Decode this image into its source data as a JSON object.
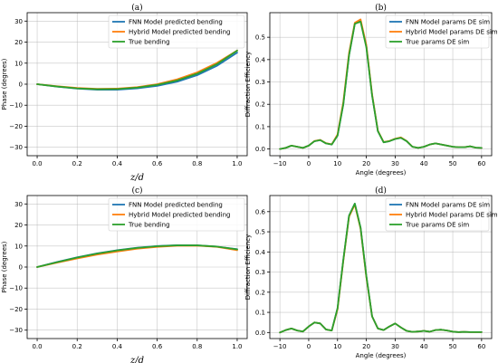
{
  "figure": {
    "panels": [
      "a",
      "b",
      "c",
      "d"
    ]
  },
  "chart_data": [
    {
      "id": "a",
      "panel_label": "(a)",
      "type": "line",
      "xlabel": "z/d",
      "ylabel": "Phase (degrees)",
      "xlim": [
        -0.05,
        1.05
      ],
      "ylim": [
        -34,
        34
      ],
      "xticks": [
        0.0,
        0.2,
        0.4,
        0.6,
        0.8,
        1.0
      ],
      "xtick_labels": [
        "0.0",
        "0.2",
        "0.4",
        "0.6",
        "0.8",
        "1.0"
      ],
      "yticks": [
        -30,
        -20,
        -10,
        0,
        10,
        20,
        30
      ],
      "ytick_labels": [
        "−30",
        "−20",
        "−10",
        "0",
        "10",
        "20",
        "30"
      ],
      "grid": true,
      "legend_position": "top-right",
      "series": [
        {
          "name": "FNN Model predicted bending",
          "color": "#1f77b4",
          "x": [
            0.0,
            0.1,
            0.2,
            0.3,
            0.4,
            0.5,
            0.6,
            0.7,
            0.8,
            0.9,
            1.0
          ],
          "y": [
            0.0,
            -1.2,
            -2.1,
            -2.6,
            -2.6,
            -2.0,
            -0.8,
            1.2,
            4.3,
            8.8,
            15.0
          ]
        },
        {
          "name": "Hybrid Model predicted bending",
          "color": "#ff7f0e",
          "x": [
            0.0,
            0.1,
            0.2,
            0.3,
            0.4,
            0.5,
            0.6,
            0.7,
            0.8,
            0.9,
            1.0
          ],
          "y": [
            0.0,
            -1.0,
            -1.8,
            -2.2,
            -2.1,
            -1.4,
            0.0,
            2.3,
            5.6,
            10.2,
            16.0
          ]
        },
        {
          "name": "True bending",
          "color": "#2ca02c",
          "x": [
            0.0,
            0.1,
            0.2,
            0.3,
            0.4,
            0.5,
            0.6,
            0.7,
            0.8,
            0.9,
            1.0
          ],
          "y": [
            0.0,
            -1.1,
            -2.0,
            -2.4,
            -2.3,
            -1.6,
            -0.3,
            1.8,
            5.0,
            9.6,
            16.0
          ]
        }
      ]
    },
    {
      "id": "b",
      "panel_label": "(b)",
      "type": "line",
      "xlabel": "Angle (degrees)",
      "ylabel": "Diffraction Efficiency",
      "xlim": [
        -13.5,
        63.5
      ],
      "ylim": [
        -0.03,
        0.61
      ],
      "xticks": [
        -10,
        0,
        10,
        20,
        30,
        40,
        50,
        60
      ],
      "xtick_labels": [
        "−10",
        "0",
        "10",
        "20",
        "30",
        "40",
        "50",
        "60"
      ],
      "yticks": [
        0.0,
        0.1,
        0.2,
        0.3,
        0.4,
        0.5
      ],
      "ytick_labels": [
        "0.0",
        "0.1",
        "0.2",
        "0.3",
        "0.4",
        "0.5"
      ],
      "grid": true,
      "legend_position": "top-right",
      "series": [
        {
          "name": "FNN Model params DE sim",
          "color": "#1f77b4",
          "x": [
            -10,
            -8,
            -6,
            -4,
            -2,
            0,
            2,
            4,
            6,
            8,
            10,
            12,
            14,
            16,
            18,
            20,
            22,
            24,
            26,
            28,
            30,
            32,
            34,
            36,
            38,
            40,
            42,
            44,
            46,
            48,
            50,
            52,
            54,
            56,
            58,
            60
          ],
          "y": [
            0.0,
            0.005,
            0.015,
            0.01,
            0.005,
            0.015,
            0.035,
            0.04,
            0.025,
            0.02,
            0.06,
            0.2,
            0.42,
            0.56,
            0.575,
            0.46,
            0.24,
            0.08,
            0.03,
            0.035,
            0.045,
            0.05,
            0.035,
            0.01,
            0.005,
            0.01,
            0.02,
            0.025,
            0.02,
            0.015,
            0.01,
            0.008,
            0.008,
            0.012,
            0.006,
            0.005
          ]
        },
        {
          "name": "Hybrid Model params DE sim",
          "color": "#ff7f0e",
          "x": [
            -10,
            -8,
            -6,
            -4,
            -2,
            0,
            2,
            4,
            6,
            8,
            10,
            12,
            14,
            16,
            18,
            20,
            22,
            24,
            26,
            28,
            30,
            32,
            34,
            36,
            38,
            40,
            42,
            44,
            46,
            48,
            50,
            52,
            54,
            56,
            58,
            60
          ],
          "y": [
            0.0,
            0.005,
            0.015,
            0.01,
            0.005,
            0.015,
            0.036,
            0.041,
            0.026,
            0.021,
            0.065,
            0.21,
            0.43,
            0.565,
            0.58,
            0.465,
            0.245,
            0.082,
            0.031,
            0.036,
            0.046,
            0.052,
            0.036,
            0.01,
            0.005,
            0.01,
            0.02,
            0.025,
            0.02,
            0.015,
            0.01,
            0.008,
            0.008,
            0.012,
            0.006,
            0.005
          ]
        },
        {
          "name": "True params DE sim",
          "color": "#2ca02c",
          "x": [
            -10,
            -8,
            -6,
            -4,
            -2,
            0,
            2,
            4,
            6,
            8,
            10,
            12,
            14,
            16,
            18,
            20,
            22,
            24,
            26,
            28,
            30,
            32,
            34,
            36,
            38,
            40,
            42,
            44,
            46,
            48,
            50,
            52,
            54,
            56,
            58,
            60
          ],
          "y": [
            0.0,
            0.005,
            0.015,
            0.01,
            0.005,
            0.015,
            0.035,
            0.04,
            0.025,
            0.02,
            0.06,
            0.2,
            0.42,
            0.56,
            0.57,
            0.455,
            0.24,
            0.08,
            0.03,
            0.035,
            0.045,
            0.05,
            0.035,
            0.01,
            0.005,
            0.01,
            0.02,
            0.025,
            0.02,
            0.015,
            0.01,
            0.008,
            0.008,
            0.012,
            0.006,
            0.005
          ]
        }
      ]
    },
    {
      "id": "c",
      "panel_label": "(c)",
      "type": "line",
      "xlabel": "z/d",
      "ylabel": "Phase (degrees)",
      "xlim": [
        -0.05,
        1.05
      ],
      "ylim": [
        -34,
        34
      ],
      "xticks": [
        0.0,
        0.2,
        0.4,
        0.6,
        0.8,
        1.0
      ],
      "xtick_labels": [
        "0.0",
        "0.2",
        "0.4",
        "0.6",
        "0.8",
        "1.0"
      ],
      "yticks": [
        -30,
        -20,
        -10,
        0,
        10,
        20,
        30
      ],
      "ytick_labels": [
        "−30",
        "−20",
        "−10",
        "0",
        "10",
        "20",
        "30"
      ],
      "grid": true,
      "legend_position": "top-right",
      "series": [
        {
          "name": "FNN Model predicted bending",
          "color": "#1f77b4",
          "x": [
            0.0,
            0.1,
            0.2,
            0.3,
            0.4,
            0.5,
            0.6,
            0.7,
            0.8,
            0.9,
            1.0
          ],
          "y": [
            0.0,
            2.4,
            4.6,
            6.5,
            8.0,
            9.2,
            10.0,
            10.4,
            10.3,
            9.7,
            8.5
          ]
        },
        {
          "name": "Hybrid Model predicted bending",
          "color": "#ff7f0e",
          "x": [
            0.0,
            0.1,
            0.2,
            0.3,
            0.4,
            0.5,
            0.6,
            0.7,
            0.8,
            0.9,
            1.0
          ],
          "y": [
            0.0,
            2.1,
            4.1,
            5.9,
            7.4,
            8.7,
            9.6,
            10.1,
            10.2,
            9.6,
            8.0
          ]
        },
        {
          "name": "True bending",
          "color": "#2ca02c",
          "x": [
            0.0,
            0.1,
            0.2,
            0.3,
            0.4,
            0.5,
            0.6,
            0.7,
            0.8,
            0.9,
            1.0
          ],
          "y": [
            0.0,
            2.3,
            4.5,
            6.4,
            7.9,
            9.1,
            9.9,
            10.3,
            10.3,
            9.7,
            8.4
          ]
        }
      ]
    },
    {
      "id": "d",
      "panel_label": "(d)",
      "type": "line",
      "xlabel": "Angle (degrees)",
      "ylabel": "Diffraction Efficiency",
      "xlim": [
        -13.5,
        63.5
      ],
      "ylim": [
        -0.03,
        0.68
      ],
      "xticks": [
        -10,
        0,
        10,
        20,
        30,
        40,
        50,
        60
      ],
      "xtick_labels": [
        "−10",
        "0",
        "10",
        "20",
        "30",
        "40",
        "50",
        "60"
      ],
      "yticks": [
        0.0,
        0.1,
        0.2,
        0.3,
        0.4,
        0.5,
        0.6
      ],
      "ytick_labels": [
        "0.0",
        "0.1",
        "0.2",
        "0.3",
        "0.4",
        "0.5",
        "0.6"
      ],
      "grid": true,
      "legend_position": "top-right",
      "series": [
        {
          "name": "FNN Model params DE sim",
          "color": "#1f77b4",
          "x": [
            -10,
            -8,
            -6,
            -4,
            -2,
            0,
            2,
            4,
            6,
            8,
            10,
            12,
            14,
            16,
            18,
            20,
            22,
            24,
            26,
            28,
            30,
            32,
            34,
            36,
            38,
            40,
            42,
            44,
            46,
            48,
            50,
            52,
            54,
            56,
            58,
            60
          ],
          "y": [
            0.0,
            0.012,
            0.02,
            0.01,
            0.005,
            0.03,
            0.05,
            0.045,
            0.015,
            0.01,
            0.12,
            0.36,
            0.58,
            0.64,
            0.52,
            0.28,
            0.08,
            0.02,
            0.012,
            0.03,
            0.045,
            0.025,
            0.008,
            0.003,
            0.005,
            0.008,
            0.004,
            0.012,
            0.014,
            0.01,
            0.004,
            0.002,
            0.003,
            0.002,
            0.002,
            0.002
          ]
        },
        {
          "name": "Hybrid Model params DE sim",
          "color": "#ff7f0e",
          "x": [
            -10,
            -8,
            -6,
            -4,
            -2,
            0,
            2,
            4,
            6,
            8,
            10,
            12,
            14,
            16,
            18,
            20,
            22,
            24,
            26,
            28,
            30,
            32,
            34,
            36,
            38,
            40,
            42,
            44,
            46,
            48,
            50,
            52,
            54,
            56,
            58,
            60
          ],
          "y": [
            0.0,
            0.012,
            0.02,
            0.01,
            0.005,
            0.03,
            0.05,
            0.045,
            0.015,
            0.01,
            0.115,
            0.355,
            0.575,
            0.635,
            0.515,
            0.275,
            0.08,
            0.02,
            0.012,
            0.03,
            0.045,
            0.025,
            0.008,
            0.003,
            0.005,
            0.008,
            0.004,
            0.012,
            0.014,
            0.01,
            0.004,
            0.002,
            0.003,
            0.002,
            0.002,
            0.002
          ]
        },
        {
          "name": "True params DE sim",
          "color": "#2ca02c",
          "x": [
            -10,
            -8,
            -6,
            -4,
            -2,
            0,
            2,
            4,
            6,
            8,
            10,
            12,
            14,
            16,
            18,
            20,
            22,
            24,
            26,
            28,
            30,
            32,
            34,
            36,
            38,
            40,
            42,
            44,
            46,
            48,
            50,
            52,
            54,
            56,
            58,
            60
          ],
          "y": [
            0.0,
            0.012,
            0.02,
            0.01,
            0.005,
            0.03,
            0.05,
            0.045,
            0.015,
            0.01,
            0.12,
            0.36,
            0.58,
            0.64,
            0.52,
            0.28,
            0.08,
            0.02,
            0.012,
            0.03,
            0.045,
            0.025,
            0.008,
            0.003,
            0.005,
            0.008,
            0.004,
            0.012,
            0.014,
            0.01,
            0.004,
            0.002,
            0.003,
            0.002,
            0.002,
            0.002
          ]
        }
      ]
    }
  ]
}
